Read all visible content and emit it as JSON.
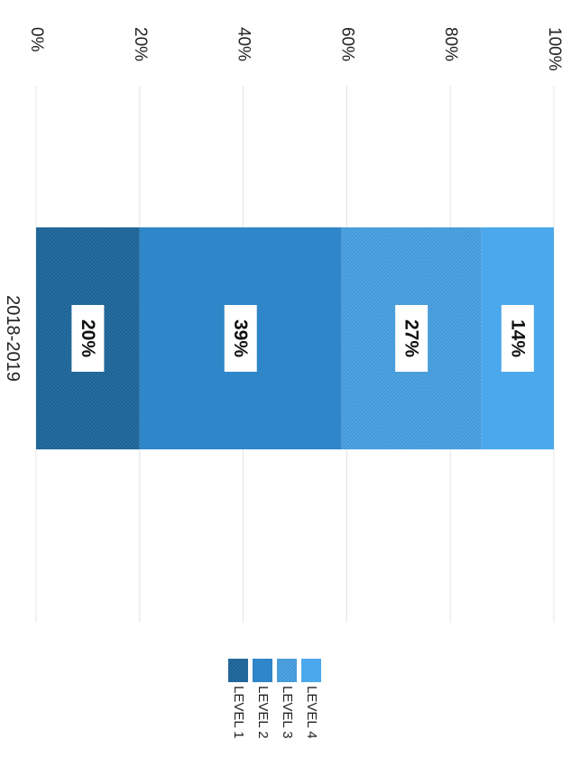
{
  "chart_data": {
    "type": "bar",
    "orientation": "stacked-100-percent",
    "categories": [
      "2018-2019"
    ],
    "series": [
      {
        "name": "LEVEL 1",
        "values": [
          20
        ],
        "label": "20%",
        "color": "#1c5f8f",
        "pattern": "crosshatch"
      },
      {
        "name": "LEVEL 2",
        "values": [
          39
        ],
        "label": "39%",
        "color": "#2f86c9",
        "pattern": "solid"
      },
      {
        "name": "LEVEL 3",
        "values": [
          27
        ],
        "label": "27%",
        "color": "#4fa3e0",
        "pattern": "diagonal"
      },
      {
        "name": "LEVEL 4",
        "values": [
          14
        ],
        "label": "14%",
        "color": "#4ca8ec",
        "pattern": "solid"
      }
    ],
    "ticks": [
      "0%",
      "20%",
      "40%",
      "60%",
      "80%",
      "100%"
    ],
    "tick_values": [
      0,
      20,
      40,
      60,
      80,
      100
    ],
    "ylim": [
      0,
      100
    ],
    "grid": true,
    "legend_placement": "bottom",
    "rotated": "image rotated 90 degrees clockwise"
  }
}
